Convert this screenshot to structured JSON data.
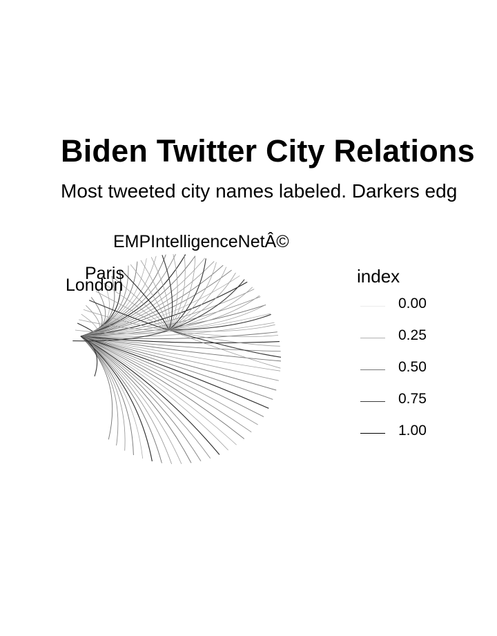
{
  "chart_data": {
    "type": "network-arc",
    "title": "Biden Twitter City Relations",
    "subtitle": "Most tweeted city names labeled. Darkers edg",
    "node_labels": [
      "EMPIntelligenceNetÂ©",
      "Paris",
      "London"
    ],
    "legend": {
      "title": "index",
      "entries": [
        "0.00",
        "0.25",
        "0.50",
        "0.75",
        "1.00"
      ],
      "values": [
        0.0,
        0.25,
        0.5,
        0.75,
        1.0
      ]
    },
    "hub_edges": 55,
    "secondary_edges": 30
  }
}
